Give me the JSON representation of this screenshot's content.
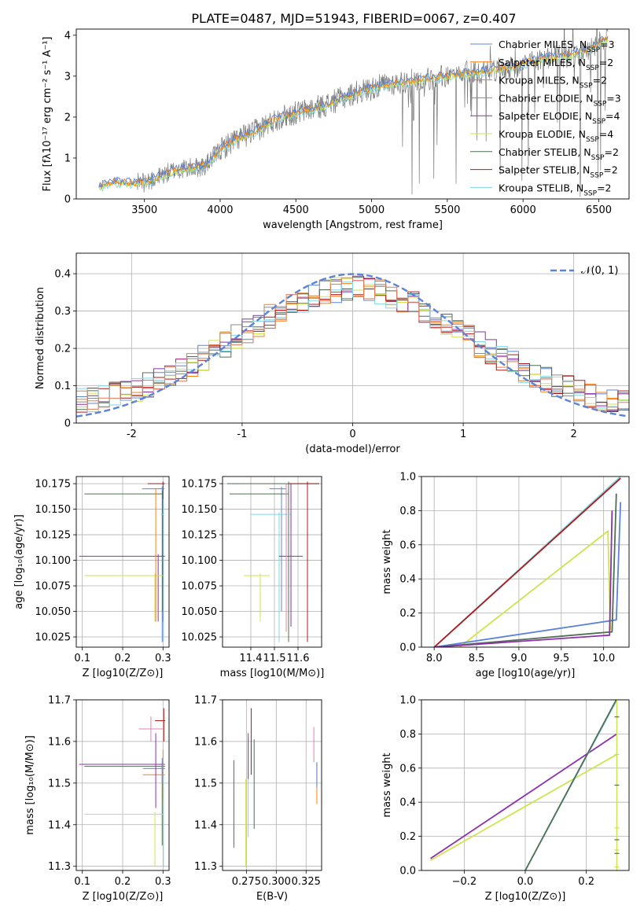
{
  "title": "PLATE=0487, MJD=51943, FIBERID=0067, z=0.407",
  "colors": {
    "chabrier_miles": "#5b84d8",
    "salpeter_miles": "#ff7f0e",
    "kroupa_miles": "#e67a54",
    "chabrier_elodie": "#8c8c8c",
    "salpeter_elodie": "#8e2fae",
    "kroupa_elodie": "#cfe34c",
    "chabrier_stelib": "#4f6f52",
    "salpeter_stelib": "#b01818",
    "kroupa_stelib": "#7fd6e6",
    "pink": "#e87fb3",
    "normal": "#5b84d8"
  },
  "chart_data": [
    {
      "id": "spectrum",
      "type": "line",
      "xlabel": "wavelength [Angstrom, rest frame]",
      "ylabel": "Flux [f_λ 10^-17 erg cm^-2 s^-1 A^-1]",
      "xlim": [
        3050,
        6700
      ],
      "ylim": [
        0,
        4.15
      ],
      "xticks": [
        3500,
        4000,
        4500,
        5000,
        5500,
        6000,
        6500
      ],
      "yticks": [
        0,
        1,
        2,
        3,
        4
      ],
      "legend_position": "top-right",
      "series": [
        {
          "name": "Chabrier MILES, N_SSP=3",
          "color": "chabrier_miles"
        },
        {
          "name": "Salpeter MILES, N_SSP=2",
          "color": "salpeter_miles"
        },
        {
          "name": "Kroupa MILES, N_SSP=2",
          "color": "kroupa_miles"
        },
        {
          "name": "Chabrier ELODIE, N_SSP=3",
          "color": "chabrier_elodie"
        },
        {
          "name": "Salpeter ELODIE, N_SSP=4",
          "color": "salpeter_elodie"
        },
        {
          "name": "Kroupa ELODIE, N_SSP=4",
          "color": "kroupa_elodie"
        },
        {
          "name": "Chabrier STELIB, N_SSP=2",
          "color": "chabrier_stelib"
        },
        {
          "name": "Salpeter STELIB, N_SSP=2",
          "color": "salpeter_stelib"
        },
        {
          "name": "Kroupa STELIB, N_SSP=2",
          "color": "kroupa_stelib"
        }
      ],
      "model_flux": {
        "x": [
          3200,
          3300,
          3400,
          3500,
          3600,
          3700,
          3800,
          3900,
          4000,
          4100,
          4200,
          4300,
          4400,
          4500,
          4600,
          4700,
          4800,
          4900,
          5000,
          5100,
          5200,
          5300,
          5400,
          5500,
          5600,
          5700,
          5800,
          5900,
          6000,
          6100,
          6200,
          6300,
          6400,
          6550
        ],
        "y": [
          0.3,
          0.42,
          0.38,
          0.4,
          0.55,
          0.7,
          0.75,
          0.8,
          1.2,
          1.45,
          1.6,
          1.8,
          2.0,
          2.1,
          2.2,
          2.3,
          2.45,
          2.6,
          2.7,
          2.8,
          2.85,
          2.9,
          2.95,
          3.0,
          3.05,
          3.1,
          3.15,
          3.2,
          3.3,
          3.4,
          3.45,
          3.5,
          3.6,
          3.9
        ]
      }
    },
    {
      "id": "residuals",
      "type": "histogram",
      "xlabel": "(data-model)/error",
      "ylabel": "Normed distribution",
      "xlim": [
        -2.5,
        2.5
      ],
      "ylim": [
        0,
        0.455
      ],
      "xticks": [
        -2,
        -1,
        0,
        1,
        2
      ],
      "yticks": [
        0.0,
        0.1,
        0.2,
        0.3,
        0.4
      ],
      "legend": "𝒩(0, 1)",
      "legend_position": "top-right",
      "grid": true
    },
    {
      "id": "age_vs_Z",
      "type": "errorbar",
      "xlabel": "Z [log10(Z/Z⊙)]",
      "ylabel": "age [log10(age/yr)]",
      "xlim": [
        0.085,
        0.315
      ],
      "ylim": [
        10.015,
        10.182
      ],
      "xticks": [
        "0.1",
        "0.2",
        "0.3"
      ],
      "yticks": [
        "10.025",
        "10.050",
        "10.075",
        "10.100",
        "10.125",
        "10.150",
        "10.175"
      ]
    },
    {
      "id": "age_vs_mass",
      "type": "errorbar",
      "xlabel": "mass [log10(M/M⊙)]",
      "ylabel": "",
      "xlim": [
        11.28,
        11.7
      ],
      "ylim": [
        10.015,
        10.182
      ],
      "xticks": [
        "11.4",
        "11.5",
        "11.6"
      ],
      "yticks": [
        "10.025",
        "10.050",
        "10.075",
        "10.100",
        "10.125",
        "10.150",
        "10.175"
      ]
    },
    {
      "id": "massweight_vs_age",
      "type": "line",
      "xlabel": "age [log10(age/yr)]",
      "ylabel": "mass weight",
      "xlim": [
        7.85,
        10.3
      ],
      "ylim": [
        0,
        1.0
      ],
      "xticks": [
        "8.0",
        "8.5",
        "9.0",
        "9.5",
        "10.0"
      ],
      "yticks": [
        "0.0",
        "0.2",
        "0.4",
        "0.6",
        "0.8",
        "1.0"
      ]
    },
    {
      "id": "mass_vs_Z",
      "type": "errorbar",
      "xlabel": "Z [log10(Z/Z⊙)]",
      "ylabel": "mass [log10(M/M⊙)]",
      "xlim": [
        0.085,
        0.315
      ],
      "ylim": [
        11.29,
        11.7
      ],
      "xticks": [
        "0.1",
        "0.2",
        "0.3"
      ],
      "yticks": [
        "11.3",
        "11.4",
        "11.5",
        "11.6",
        "11.7"
      ]
    },
    {
      "id": "mass_vs_ebv",
      "type": "errorbar",
      "xlabel": "E(B-V)",
      "ylabel": "",
      "xlim": [
        0.255,
        0.338
      ],
      "ylim": [
        11.29,
        11.7
      ],
      "xticks": [
        "0.275",
        "0.300",
        "0.325"
      ],
      "yticks": [
        "11.3",
        "11.4",
        "11.5",
        "11.6",
        "11.7"
      ]
    },
    {
      "id": "massweight_vs_Z",
      "type": "line",
      "xlabel": "Z [log10(Z/Z⊙)]",
      "ylabel": "mass weight",
      "xlim": [
        -0.34,
        0.34
      ],
      "ylim": [
        0,
        1.0
      ],
      "xticks": [
        "−0.2",
        "0.0",
        "0.2"
      ],
      "yticks": [
        "0.0",
        "0.2",
        "0.4",
        "0.6",
        "0.8",
        "1.0"
      ]
    }
  ]
}
